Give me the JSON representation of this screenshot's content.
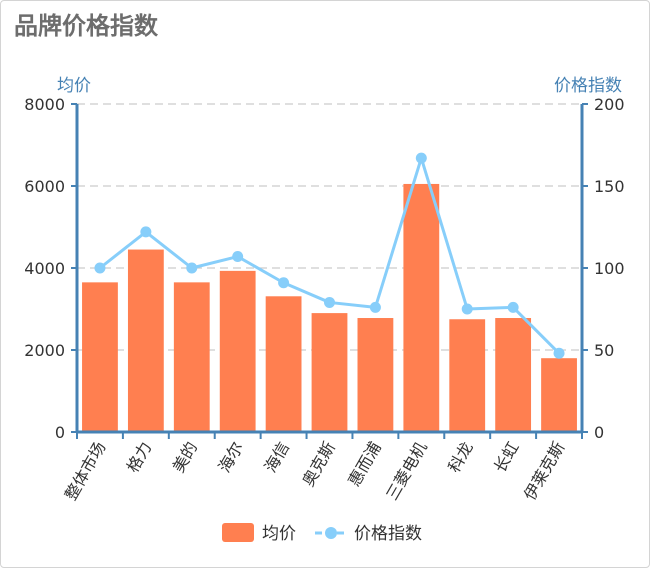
{
  "title": "品牌价格指数",
  "colors": {
    "bar": "#ff7f50",
    "line": "#87cefa",
    "axis": "#4682b4",
    "grid": "#cccccc"
  },
  "chart_data": {
    "type": "bar",
    "title": "品牌价格指数",
    "categories": [
      "整体市场",
      "格力",
      "美的",
      "海尔",
      "海信",
      "奥克斯",
      "惠而浦",
      "三菱电机",
      "科龙",
      "长虹",
      "伊莱克斯"
    ],
    "series": [
      {
        "name": "均价",
        "type": "bar",
        "axis": "left",
        "values": [
          3650,
          4450,
          3650,
          3930,
          3310,
          2900,
          2780,
          6050,
          2750,
          2780,
          1800
        ]
      },
      {
        "name": "价格指数",
        "type": "line",
        "axis": "right",
        "values": [
          100,
          122,
          100,
          107,
          91,
          79,
          76,
          167,
          75,
          76,
          48
        ]
      }
    ],
    "y_left": {
      "label": "均价",
      "range": [
        0,
        8000
      ],
      "ticks": [
        0,
        2000,
        4000,
        6000,
        8000
      ]
    },
    "y_right": {
      "label": "价格指数",
      "range": [
        0,
        200
      ],
      "ticks": [
        0,
        50,
        100,
        150,
        200
      ]
    },
    "legend": [
      "均价",
      "价格指数"
    ],
    "grid": true,
    "legend_position": "bottom"
  }
}
